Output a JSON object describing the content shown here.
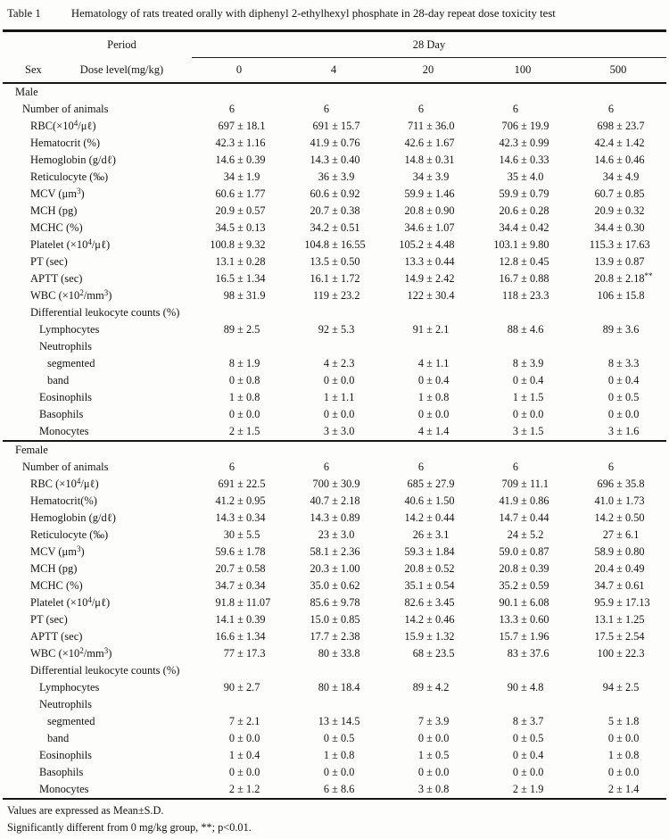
{
  "title": {
    "label": "Table 1",
    "text": "Hematology of rats treated orally with diphenyl 2-ethylhexyl phosphate in 28-day repeat dose toxicity test"
  },
  "header": {
    "period_label": "Period",
    "span_label": "28 Day",
    "sex_label": "Sex",
    "dose_label": "Dose level(mg/kg)",
    "doses": [
      "0",
      "4",
      "20",
      "100",
      "500"
    ]
  },
  "sections": [
    {
      "name": "Male",
      "rows": [
        {
          "label": "Number of animals",
          "indent": 1,
          "values": [
            [
              "6"
            ],
            [
              "6"
            ],
            [
              "6"
            ],
            [
              "6"
            ],
            [
              "6"
            ]
          ]
        },
        {
          "label": "RBC(×10^4^/μℓ)",
          "indent": 2,
          "values": [
            [
              "697",
              "18.1"
            ],
            [
              "691",
              "15.7"
            ],
            [
              "711",
              "36.0"
            ],
            [
              "706",
              "19.9"
            ],
            [
              "698",
              "23.7"
            ]
          ]
        },
        {
          "label": "Hematocrit (%)",
          "indent": 2,
          "values": [
            [
              "42.3",
              "1.16"
            ],
            [
              "41.9",
              "0.76"
            ],
            [
              "42.6",
              "1.67"
            ],
            [
              "42.3",
              "0.99"
            ],
            [
              "42.4",
              "1.42"
            ]
          ]
        },
        {
          "label": "Hemoglobin (g/dℓ)",
          "indent": 2,
          "values": [
            [
              "14.6",
              "0.39"
            ],
            [
              "14.3",
              "0.40"
            ],
            [
              "14.8",
              "0.31"
            ],
            [
              "14.6",
              "0.33"
            ],
            [
              "14.6",
              "0.46"
            ]
          ]
        },
        {
          "label": "Reticulocyte (‰)",
          "indent": 2,
          "values": [
            [
              "34",
              "1.9"
            ],
            [
              "36",
              "3.9"
            ],
            [
              "34",
              "3.9"
            ],
            [
              "35",
              "4.0"
            ],
            [
              "34",
              "4.9"
            ]
          ]
        },
        {
          "label": "MCV (μm^3^)",
          "indent": 2,
          "values": [
            [
              "60.6",
              "1.77"
            ],
            [
              "60.6",
              "0.92"
            ],
            [
              "59.9",
              "1.46"
            ],
            [
              "59.9",
              "0.79"
            ],
            [
              "60.7",
              "0.85"
            ]
          ]
        },
        {
          "label": "MCH (pg)",
          "indent": 2,
          "values": [
            [
              "20.9",
              "0.57"
            ],
            [
              "20.7",
              "0.38"
            ],
            [
              "20.8",
              "0.90"
            ],
            [
              "20.6",
              "0.28"
            ],
            [
              "20.9",
              "0.32"
            ]
          ]
        },
        {
          "label": "MCHC (%)",
          "indent": 2,
          "values": [
            [
              "34.5",
              "0.13"
            ],
            [
              "34.2",
              "0.51"
            ],
            [
              "34.6",
              "1.07"
            ],
            [
              "34.4",
              "0.42"
            ],
            [
              "34.4",
              "0.30"
            ]
          ]
        },
        {
          "label": "Platelet (×10^4^/μℓ)",
          "indent": 2,
          "values": [
            [
              "100.8",
              "9.32"
            ],
            [
              "104.8",
              "16.55"
            ],
            [
              "105.2",
              "4.48"
            ],
            [
              "103.1",
              "9.80"
            ],
            [
              "115.3",
              "17.63"
            ]
          ]
        },
        {
          "label": "PT (sec)",
          "indent": 2,
          "values": [
            [
              "13.1",
              "0.28"
            ],
            [
              "13.5",
              "0.50"
            ],
            [
              "13.3",
              "0.44"
            ],
            [
              "12.8",
              "0.45"
            ],
            [
              "13.9",
              "0.87"
            ]
          ]
        },
        {
          "label": "APTT (sec)",
          "indent": 2,
          "values": [
            [
              "16.5",
              "1.34"
            ],
            [
              "16.1",
              "1.72"
            ],
            [
              "14.9",
              "2.42"
            ],
            [
              "16.7",
              "0.88"
            ],
            [
              "20.8",
              "2.18^**^"
            ]
          ]
        },
        {
          "label": "WBC (×10^2^/mm^3^)",
          "indent": 2,
          "values": [
            [
              "98",
              "31.9"
            ],
            [
              "119",
              "23.2"
            ],
            [
              "122",
              "30.4"
            ],
            [
              "118",
              "23.3"
            ],
            [
              "106",
              "15.8"
            ]
          ]
        },
        {
          "label": "Differential leukocyte counts (%)",
          "indent": 2,
          "values": null
        },
        {
          "label": "Lymphocytes",
          "indent": 3,
          "values": [
            [
              "89",
              "2.5"
            ],
            [
              "92",
              "5.3"
            ],
            [
              "91",
              "2.1"
            ],
            [
              "88",
              "4.6"
            ],
            [
              "89",
              "3.6"
            ]
          ]
        },
        {
          "label": "Neutrophils",
          "indent": 3,
          "values": null
        },
        {
          "label": "segmented",
          "indent": 4,
          "values": [
            [
              "8",
              "1.9"
            ],
            [
              "4",
              "2.3"
            ],
            [
              "4",
              "1.1"
            ],
            [
              "8",
              "3.9"
            ],
            [
              "8",
              "3.3"
            ]
          ]
        },
        {
          "label": "band",
          "indent": 4,
          "values": [
            [
              "0",
              "0.8"
            ],
            [
              "0",
              "0.0"
            ],
            [
              "0",
              "0.4"
            ],
            [
              "0",
              "0.4"
            ],
            [
              "0",
              "0.4"
            ]
          ]
        },
        {
          "label": "Eosinophils",
          "indent": 3,
          "values": [
            [
              "1",
              "0.8"
            ],
            [
              "1",
              "1.1"
            ],
            [
              "1",
              "0.8"
            ],
            [
              "1",
              "1.5"
            ],
            [
              "0",
              "0.5"
            ]
          ]
        },
        {
          "label": "Basophils",
          "indent": 3,
          "values": [
            [
              "0",
              "0.0"
            ],
            [
              "0",
              "0.0"
            ],
            [
              "0",
              "0.0"
            ],
            [
              "0",
              "0.0"
            ],
            [
              "0",
              "0.0"
            ]
          ]
        },
        {
          "label": "Monocytes",
          "indent": 3,
          "values": [
            [
              "2",
              "1.5"
            ],
            [
              "3",
              "3.0"
            ],
            [
              "4",
              "1.4"
            ],
            [
              "3",
              "1.5"
            ],
            [
              "3",
              "1.6"
            ]
          ]
        }
      ]
    },
    {
      "name": "Female",
      "rows": [
        {
          "label": "Number of animals",
          "indent": 1,
          "values": [
            [
              "6"
            ],
            [
              "6"
            ],
            [
              "6"
            ],
            [
              "6"
            ],
            [
              "6"
            ]
          ]
        },
        {
          "label": "RBC (×10^4^/μℓ)",
          "indent": 2,
          "values": [
            [
              "691",
              "22.5"
            ],
            [
              "700",
              "30.9"
            ],
            [
              "685",
              "27.9"
            ],
            [
              "709",
              "11.1"
            ],
            [
              "696",
              "35.8"
            ]
          ]
        },
        {
          "label": "Hematocrit(%)",
          "indent": 2,
          "values": [
            [
              "41.2",
              "0.95"
            ],
            [
              "40.7",
              "2.18"
            ],
            [
              "40.6",
              "1.50"
            ],
            [
              "41.9",
              "0.86"
            ],
            [
              "41.0",
              "1.73"
            ]
          ]
        },
        {
          "label": "Hemoglobin (g/dℓ)",
          "indent": 2,
          "values": [
            [
              "14.3",
              "0.34"
            ],
            [
              "14.3",
              "0.89"
            ],
            [
              "14.2",
              "0.44"
            ],
            [
              "14.7",
              "0.44"
            ],
            [
              "14.2",
              "0.50"
            ]
          ]
        },
        {
          "label": "Reticulocyte (‰)",
          "indent": 2,
          "values": [
            [
              "30",
              "5.5"
            ],
            [
              "23",
              "3.0"
            ],
            [
              "26",
              "3.1"
            ],
            [
              "24",
              "5.2"
            ],
            [
              "27",
              "6.1"
            ]
          ]
        },
        {
          "label": "MCV (μm^3^)",
          "indent": 2,
          "values": [
            [
              "59.6",
              "1.78"
            ],
            [
              "58.1",
              "2.36"
            ],
            [
              "59.3",
              "1.84"
            ],
            [
              "59.0",
              "0.87"
            ],
            [
              "58.9",
              "0.80"
            ]
          ]
        },
        {
          "label": "MCH (pg)",
          "indent": 2,
          "values": [
            [
              "20.7",
              "0.58"
            ],
            [
              "20.3",
              "1.00"
            ],
            [
              "20.8",
              "0.52"
            ],
            [
              "20.8",
              "0.39"
            ],
            [
              "20.4",
              "0.49"
            ]
          ]
        },
        {
          "label": "MCHC (%)",
          "indent": 2,
          "values": [
            [
              "34.7",
              "0.34"
            ],
            [
              "35.0",
              "0.62"
            ],
            [
              "35.1",
              "0.54"
            ],
            [
              "35.2",
              "0.59"
            ],
            [
              "34.7",
              "0.61"
            ]
          ]
        },
        {
          "label": "Platelet (×10^4^/μℓ)",
          "indent": 2,
          "values": [
            [
              "91.8",
              "11.07"
            ],
            [
              "85.6",
              "9.78"
            ],
            [
              "82.6",
              "3.45"
            ],
            [
              "90.1",
              "6.08"
            ],
            [
              "95.9",
              "17.13"
            ]
          ]
        },
        {
          "label": "PT (sec)",
          "indent": 2,
          "values": [
            [
              "14.1",
              "0.39"
            ],
            [
              "15.0",
              "0.85"
            ],
            [
              "14.2",
              "0.46"
            ],
            [
              "13.3",
              "0.60"
            ],
            [
              "13.1",
              "1.25"
            ]
          ]
        },
        {
          "label": "APTT (sec)",
          "indent": 2,
          "values": [
            [
              "16.6",
              "1.34"
            ],
            [
              "17.7",
              "2.38"
            ],
            [
              "15.9",
              "1.32"
            ],
            [
              "15.7",
              "1.96"
            ],
            [
              "17.5",
              "2.54"
            ]
          ]
        },
        {
          "label": "WBC (×10^2^/mm^3^)",
          "indent": 2,
          "values": [
            [
              "77",
              "17.3"
            ],
            [
              "80",
              "33.8"
            ],
            [
              "68",
              "23.5"
            ],
            [
              "83",
              "37.6"
            ],
            [
              "100",
              "22.3"
            ]
          ]
        },
        {
          "label": "Differential leukocyte counts (%)",
          "indent": 2,
          "values": null
        },
        {
          "label": "Lymphocytes",
          "indent": 3,
          "values": [
            [
              "90",
              "2.7"
            ],
            [
              "80",
              "18.4"
            ],
            [
              "89",
              "4.2"
            ],
            [
              "90",
              "4.8"
            ],
            [
              "94",
              "2.5"
            ]
          ]
        },
        {
          "label": "Neutrophils",
          "indent": 3,
          "values": null
        },
        {
          "label": "segmented",
          "indent": 4,
          "values": [
            [
              "7",
              "2.1"
            ],
            [
              "13",
              "14.5"
            ],
            [
              "7",
              "3.9"
            ],
            [
              "8",
              "3.7"
            ],
            [
              "5",
              "1.8"
            ]
          ]
        },
        {
          "label": "band",
          "indent": 4,
          "values": [
            [
              "0",
              "0.0"
            ],
            [
              "0",
              "0.5"
            ],
            [
              "0",
              "0.0"
            ],
            [
              "0",
              "0.5"
            ],
            [
              "0",
              "0.0"
            ]
          ]
        },
        {
          "label": "Eosinophils",
          "indent": 3,
          "values": [
            [
              "1",
              "0.4"
            ],
            [
              "1",
              "0.8"
            ],
            [
              "1",
              "0.5"
            ],
            [
              "0",
              "0.4"
            ],
            [
              "1",
              "0.8"
            ]
          ]
        },
        {
          "label": "Basophils",
          "indent": 3,
          "values": [
            [
              "0",
              "0.0"
            ],
            [
              "0",
              "0.0"
            ],
            [
              "0",
              "0.0"
            ],
            [
              "0",
              "0.0"
            ],
            [
              "0",
              "0.0"
            ]
          ]
        },
        {
          "label": "Monocytes",
          "indent": 3,
          "values": [
            [
              "2",
              "1.2"
            ],
            [
              "6",
              "8.6"
            ],
            [
              "3",
              "0.8"
            ],
            [
              "2",
              "1.9"
            ],
            [
              "2",
              "1.4"
            ]
          ]
        }
      ]
    }
  ],
  "footnotes": [
    "Values are expressed as Mean±S.D.",
    "Significantly different from 0 mg/kg group, **; p<0.01."
  ]
}
